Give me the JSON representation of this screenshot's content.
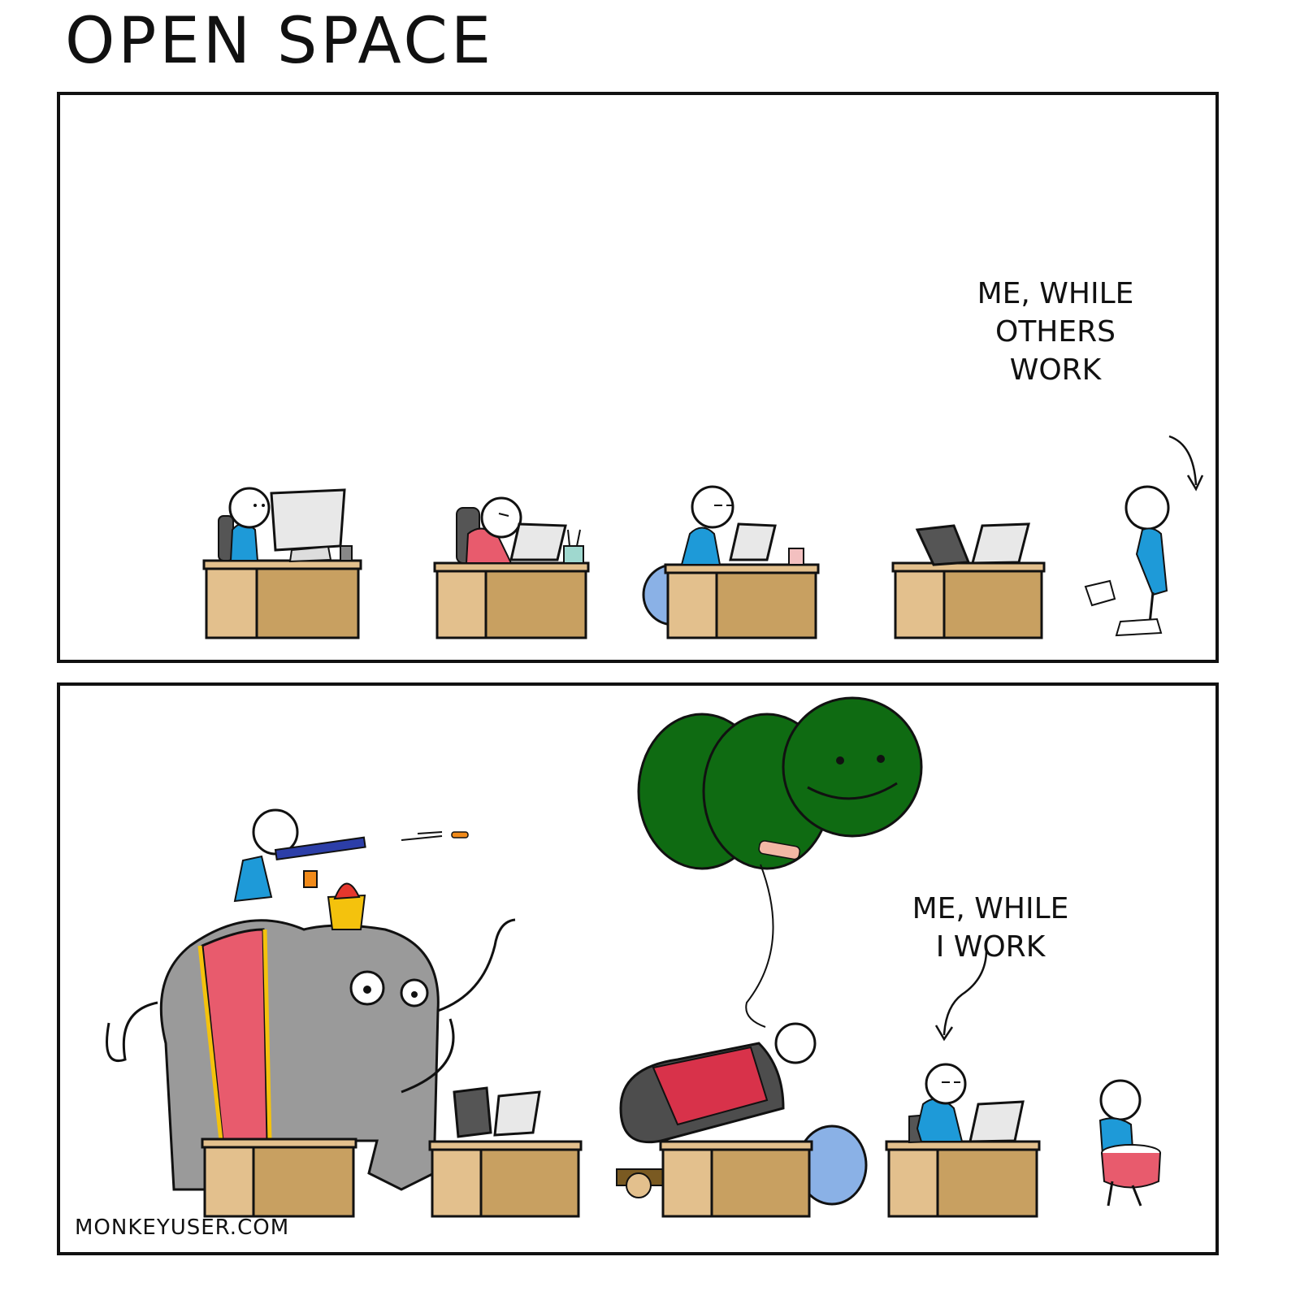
{
  "comic": {
    "title": "OPEN SPACE",
    "panels": [
      {
        "caption": "ME, WHILE\nOTHERS\nWORK"
      },
      {
        "caption": "ME, WHILE\nI WORK"
      }
    ],
    "footer": "MONKEYUSER.COM"
  },
  "colors": {
    "desk": "#e3c08d",
    "desk_dark": "#c8a061",
    "shirt_blue": "#1e9ad8",
    "shirt_red": "#e85b6d",
    "elephant": "#9a9a9a",
    "balloon": "#0f6b12",
    "ball": "#8ab1e6",
    "monitor": "#e8e8e8"
  }
}
